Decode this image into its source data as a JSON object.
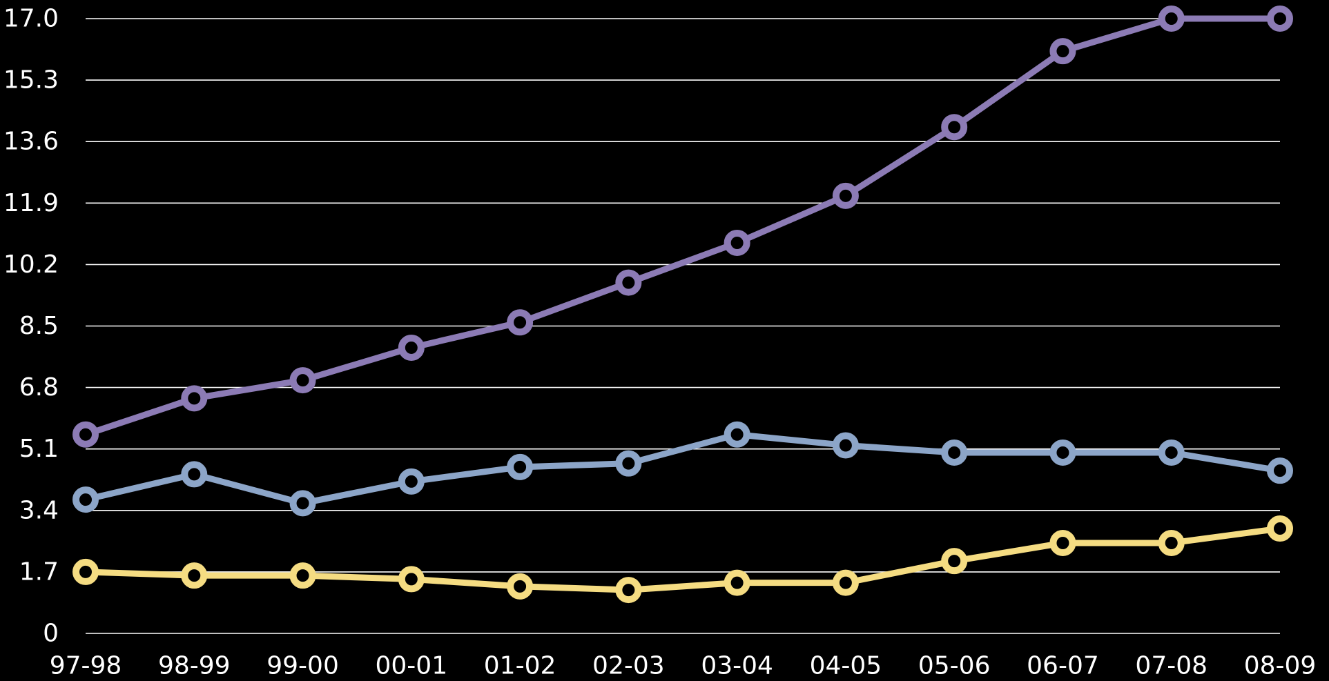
{
  "chart_data": {
    "type": "line",
    "title": "",
    "xlabel": "",
    "ylabel": "",
    "categories": [
      "97-98",
      "98-99",
      "99-00",
      "00-01",
      "01-02",
      "02-03",
      "03-04",
      "04-05",
      "05-06",
      "06-07",
      "07-08",
      "08-09"
    ],
    "y_ticks": [
      "0",
      "1.7",
      "3.4",
      "5.1",
      "6.8",
      "8.5",
      "10.2",
      "11.9",
      "13.6",
      "15.3",
      "17.0"
    ],
    "ylim": [
      0,
      17.0
    ],
    "grid": true,
    "legend": "none",
    "series": [
      {
        "color": "#8c7bb5",
        "values": [
          5.5,
          6.5,
          7.0,
          7.9,
          8.6,
          9.7,
          10.8,
          12.1,
          14.0,
          16.1,
          17.0,
          17.0
        ]
      },
      {
        "color": "#8ca5c8",
        "values": [
          3.7,
          4.4,
          3.6,
          4.2,
          4.6,
          4.7,
          5.5,
          5.2,
          5.0,
          5.0,
          5.0,
          4.5
        ]
      },
      {
        "color": "#f5dc82",
        "values": [
          1.7,
          1.6,
          1.6,
          1.5,
          1.3,
          1.2,
          1.4,
          1.4,
          2.0,
          2.5,
          2.5,
          2.9
        ]
      }
    ]
  }
}
